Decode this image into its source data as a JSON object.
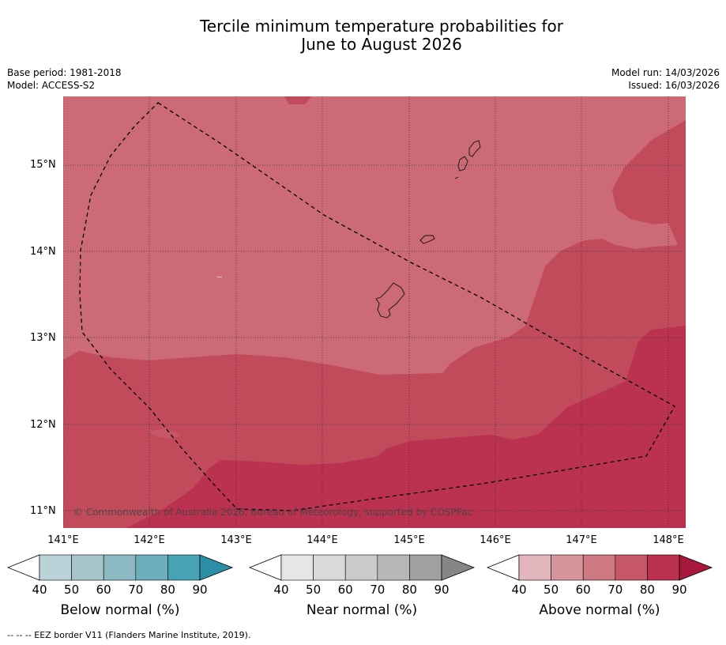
{
  "title_line1": "Tercile minimum temperature probabilities for",
  "title_line2": "June to August 2026",
  "meta_left": {
    "base_period": "Base period: 1981-2018",
    "model": "Model: ACCESS-S2"
  },
  "meta_right": {
    "model_run": "Model run: 14/03/2026",
    "issued": "Issued: 16/03/2026"
  },
  "lat_labels": [
    "15°N",
    "14°N",
    "13°N",
    "12°N",
    "11°N"
  ],
  "lon_labels": [
    "141°E",
    "142°E",
    "143°E",
    "144°E",
    "145°E",
    "146°E",
    "147°E",
    "148°E"
  ],
  "copyright": "© Commonwealth of Australia 2026, Bureau of Meteorology, supported by COSPPac",
  "colors": {
    "above_60_70": "#cc6b76",
    "above_70_80": "#c24b5b",
    "above_80_90": "#bb3150",
    "above_90": "#a8183d"
  },
  "colorbars": [
    {
      "label": "Below normal (%)",
      "ticks": [
        "40",
        "50",
        "60",
        "70",
        "80",
        "90"
      ],
      "colors": [
        "#ffffff",
        "#bcd2d9",
        "#a7c5ca",
        "#8cb9c3",
        "#6eadbc",
        "#47a2b4",
        "#2c8fa5"
      ]
    },
    {
      "label": "Near normal (%)",
      "ticks": [
        "40",
        "50",
        "60",
        "70",
        "80",
        "90"
      ],
      "colors": [
        "#ffffff",
        "#e6e6e6",
        "#d9d9d9",
        "#cbcbcb",
        "#b7b7b7",
        "#a1a1a1",
        "#868686"
      ]
    },
    {
      "label": "Above normal (%)",
      "ticks": [
        "40",
        "50",
        "60",
        "70",
        "80",
        "90"
      ],
      "colors": [
        "#ffffff",
        "#e2b6bc",
        "#d6959c",
        "#cc7982",
        "#c55766",
        "#bb3150",
        "#a8183d"
      ]
    }
  ],
  "footnote": "--  --  -- EEZ border V11 (Flanders Marine Institute, 2019)."
}
